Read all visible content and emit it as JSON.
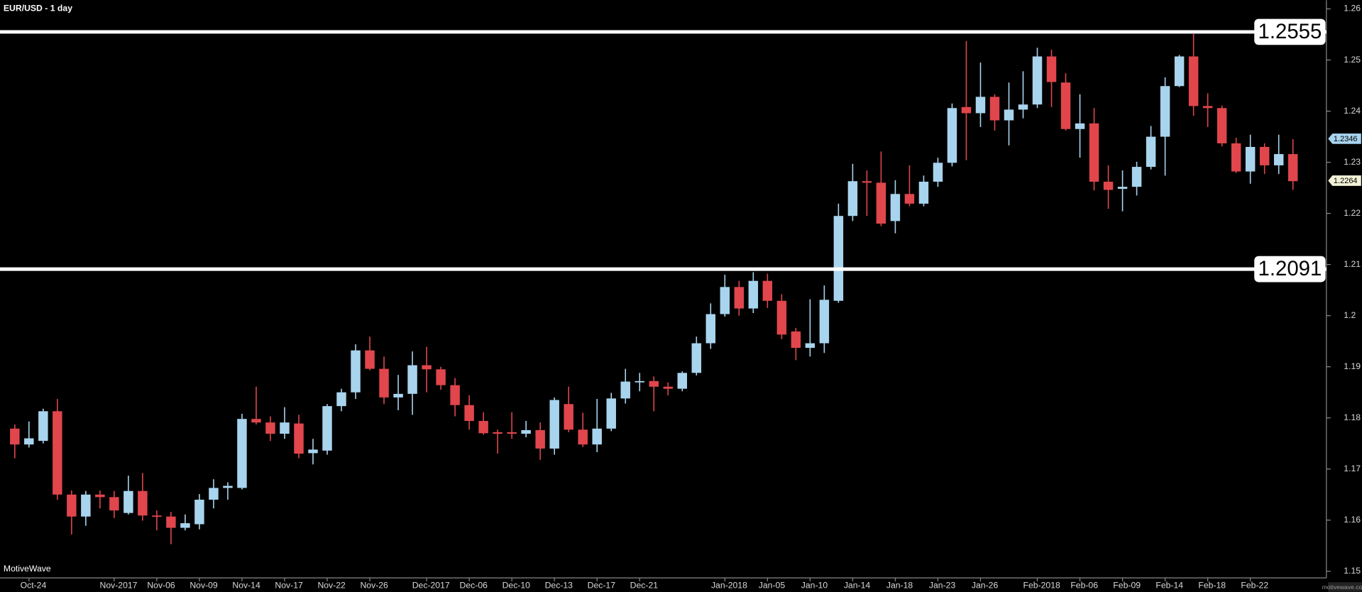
{
  "chart_data": {
    "type": "candlestick",
    "title": "EUR/USD - 1 day",
    "source": "MotiveWave",
    "watermark": "motivewave.com",
    "up_color": "#a8d4ee",
    "down_color": "#e0464c",
    "ylim": [
      1.1487,
      1.2617
    ],
    "yticks": [
      1.15,
      1.16,
      1.17,
      1.18,
      1.19,
      1.2,
      1.21,
      1.22,
      1.23,
      1.24,
      1.25,
      1.26
    ],
    "levels": [
      1.2555,
      1.2091
    ],
    "price_markers": [
      {
        "value": 1.2346,
        "color": "#a8d4ee"
      },
      {
        "value": 1.2264,
        "color": "#f2f2d8"
      }
    ],
    "categories": [
      null,
      "Oct-24",
      null,
      null,
      null,
      null,
      null,
      "Nov-2017",
      null,
      null,
      "Nov-06",
      null,
      null,
      "Nov-09",
      null,
      null,
      "Nov-14",
      null,
      null,
      "Nov-17",
      null,
      null,
      "Nov-22",
      null,
      null,
      "Nov-26",
      null,
      null,
      null,
      "Dec-2017",
      null,
      null,
      "Dec-06",
      null,
      null,
      "Dec-10",
      null,
      null,
      "Dec-13",
      null,
      null,
      "Dec-17",
      null,
      null,
      "Dec-21",
      null,
      null,
      null,
      null,
      null,
      "Jan-2018",
      null,
      null,
      "Jan-05",
      null,
      null,
      "Jan-10",
      null,
      null,
      "Jan-14",
      null,
      null,
      "Jan-18",
      null,
      null,
      "Jan-23",
      null,
      null,
      "Jan-26",
      null,
      null,
      null,
      "Feb-2018",
      null,
      null,
      "Feb-06",
      null,
      null,
      "Feb-09",
      null,
      null,
      "Feb-14",
      null,
      null,
      "Feb-18",
      null,
      null,
      "Feb-22",
      null,
      null,
      null
    ],
    "open": [
      1.1779,
      1.1748,
      1.1755,
      1.1813,
      1.165,
      1.1607,
      1.165,
      1.1645,
      1.1614,
      1.1657,
      1.1609,
      1.1607,
      1.1585,
      1.1592,
      1.164,
      1.1663,
      1.1663,
      1.1798,
      1.1791,
      1.1769,
      1.1789,
      1.1731,
      1.1736,
      1.1823,
      1.185,
      1.1932,
      1.1896,
      1.184,
      1.1847,
      1.1903,
      1.1895,
      1.1864,
      1.1825,
      1.1794,
      1.1772,
      1.1772,
      1.1769,
      1.1776,
      1.174,
      1.1827,
      1.1777,
      1.1748,
      1.1779,
      1.1838,
      1.1871,
      1.1872,
      1.1861,
      1.1857,
      1.1888,
      1.1946,
      1.2003,
      1.2056,
      1.2014,
      1.2068,
      1.2029,
      1.1969,
      1.1937,
      1.1946,
      1.2029,
      1.2195,
      1.2263,
      1.226,
      1.2185,
      1.2238,
      1.2219,
      1.2262,
      1.2299,
      1.2408,
      1.2396,
      1.2428,
      1.2382,
      1.2403,
      1.2413,
      1.2507,
      1.2456,
      1.2365,
      1.2376,
      1.2262,
      1.2248,
      1.2252,
      1.2291,
      1.235,
      1.2449,
      1.2507,
      1.241,
      1.2406,
      1.2337,
      1.2282,
      1.233,
      1.2294,
      1.2316
    ],
    "high": [
      1.1787,
      1.1793,
      1.1818,
      1.1837,
      1.1658,
      1.1657,
      1.1658,
      1.1657,
      1.1687,
      1.1692,
      1.1619,
      1.1616,
      1.1611,
      1.1651,
      1.168,
      1.1674,
      1.1808,
      1.1861,
      1.1803,
      1.1821,
      1.1806,
      1.1759,
      1.1827,
      1.1857,
      1.1944,
      1.1959,
      1.192,
      1.1884,
      1.193,
      1.1939,
      1.19,
      1.1878,
      1.1844,
      1.1811,
      1.1777,
      1.1811,
      1.1794,
      1.1791,
      1.184,
      1.1861,
      1.181,
      1.1837,
      1.1849,
      1.1896,
      1.1888,
      1.1881,
      1.1869,
      1.1891,
      1.1959,
      1.2024,
      1.208,
      1.2068,
      1.2085,
      1.2082,
      1.2042,
      1.1976,
      1.2032,
      1.2059,
      1.2219,
      1.2297,
      1.2284,
      1.2321,
      1.2265,
      1.2294,
      1.2274,
      1.2309,
      1.2415,
      1.2537,
      1.2495,
      1.2433,
      1.2456,
      1.2478,
      1.2524,
      1.252,
      1.2474,
      1.2433,
      1.2406,
      1.2294,
      1.2284,
      1.2301,
      1.2371,
      1.2466,
      1.251,
      1.2551,
      1.2435,
      1.2411,
      1.2348,
      1.2354,
      1.2337,
      1.2354,
      1.2345
    ],
    "low": [
      1.1721,
      1.1742,
      1.175,
      1.164,
      1.1572,
      1.1589,
      1.1623,
      1.1604,
      1.1611,
      1.1599,
      1.158,
      1.1553,
      1.158,
      1.1582,
      1.1623,
      1.164,
      1.166,
      1.1787,
      1.1755,
      1.1759,
      1.1721,
      1.1709,
      1.1728,
      1.1813,
      1.1837,
      1.1893,
      1.1827,
      1.1815,
      1.1806,
      1.185,
      1.1855,
      1.1803,
      1.1777,
      1.1767,
      1.173,
      1.1759,
      1.1762,
      1.1718,
      1.1728,
      1.1772,
      1.1743,
      1.1733,
      1.1774,
      1.1828,
      1.1852,
      1.1813,
      1.1844,
      1.1852,
      1.1883,
      1.1935,
      1.1998,
      1.2,
      1.2005,
      1.2015,
      1.1954,
      1.1913,
      1.192,
      1.1927,
      1.2025,
      1.2185,
      1.2195,
      1.2175,
      1.2161,
      1.2214,
      1.2214,
      1.2252,
      1.2292,
      1.2304,
      1.2369,
      1.2362,
      1.2333,
      1.2386,
      1.2406,
      1.2408,
      1.2362,
      1.2309,
      1.2245,
      1.2209,
      1.2204,
      1.2235,
      1.2286,
      1.2274,
      1.2447,
      1.2391,
      1.2369,
      1.2331,
      1.2279,
      1.2258,
      1.2277,
      1.2277,
      1.2246
    ],
    "close": [
      1.1748,
      1.176,
      1.1813,
      1.165,
      1.1607,
      1.165,
      1.1645,
      1.1619,
      1.1657,
      1.1609,
      1.1607,
      1.1585,
      1.1594,
      1.164,
      1.1663,
      1.1667,
      1.1798,
      1.1791,
      1.1769,
      1.1791,
      1.173,
      1.1738,
      1.1823,
      1.185,
      1.1932,
      1.1896,
      1.184,
      1.1847,
      1.1903,
      1.1895,
      1.1864,
      1.1825,
      1.1794,
      1.177,
      1.1769,
      1.1769,
      1.1776,
      1.174,
      1.1835,
      1.1777,
      1.1748,
      1.1779,
      1.1838,
      1.1871,
      1.1872,
      1.1861,
      1.1857,
      1.1888,
      1.1946,
      1.2003,
      1.2056,
      1.2014,
      1.2068,
      1.2029,
      1.1963,
      1.1937,
      1.1946,
      1.2031,
      1.2195,
      1.2263,
      1.226,
      1.218,
      1.2238,
      1.2219,
      1.2262,
      1.2299,
      1.2406,
      1.2396,
      1.2428,
      1.2382,
      1.2403,
      1.2413,
      1.2507,
      1.2457,
      1.2365,
      1.2376,
      1.2262,
      1.2246,
      1.2252,
      1.2291,
      1.235,
      1.2449,
      1.2507,
      1.241,
      1.2406,
      1.2337,
      1.2282,
      1.233,
      1.2294,
      1.2316,
      1.2263
    ]
  }
}
